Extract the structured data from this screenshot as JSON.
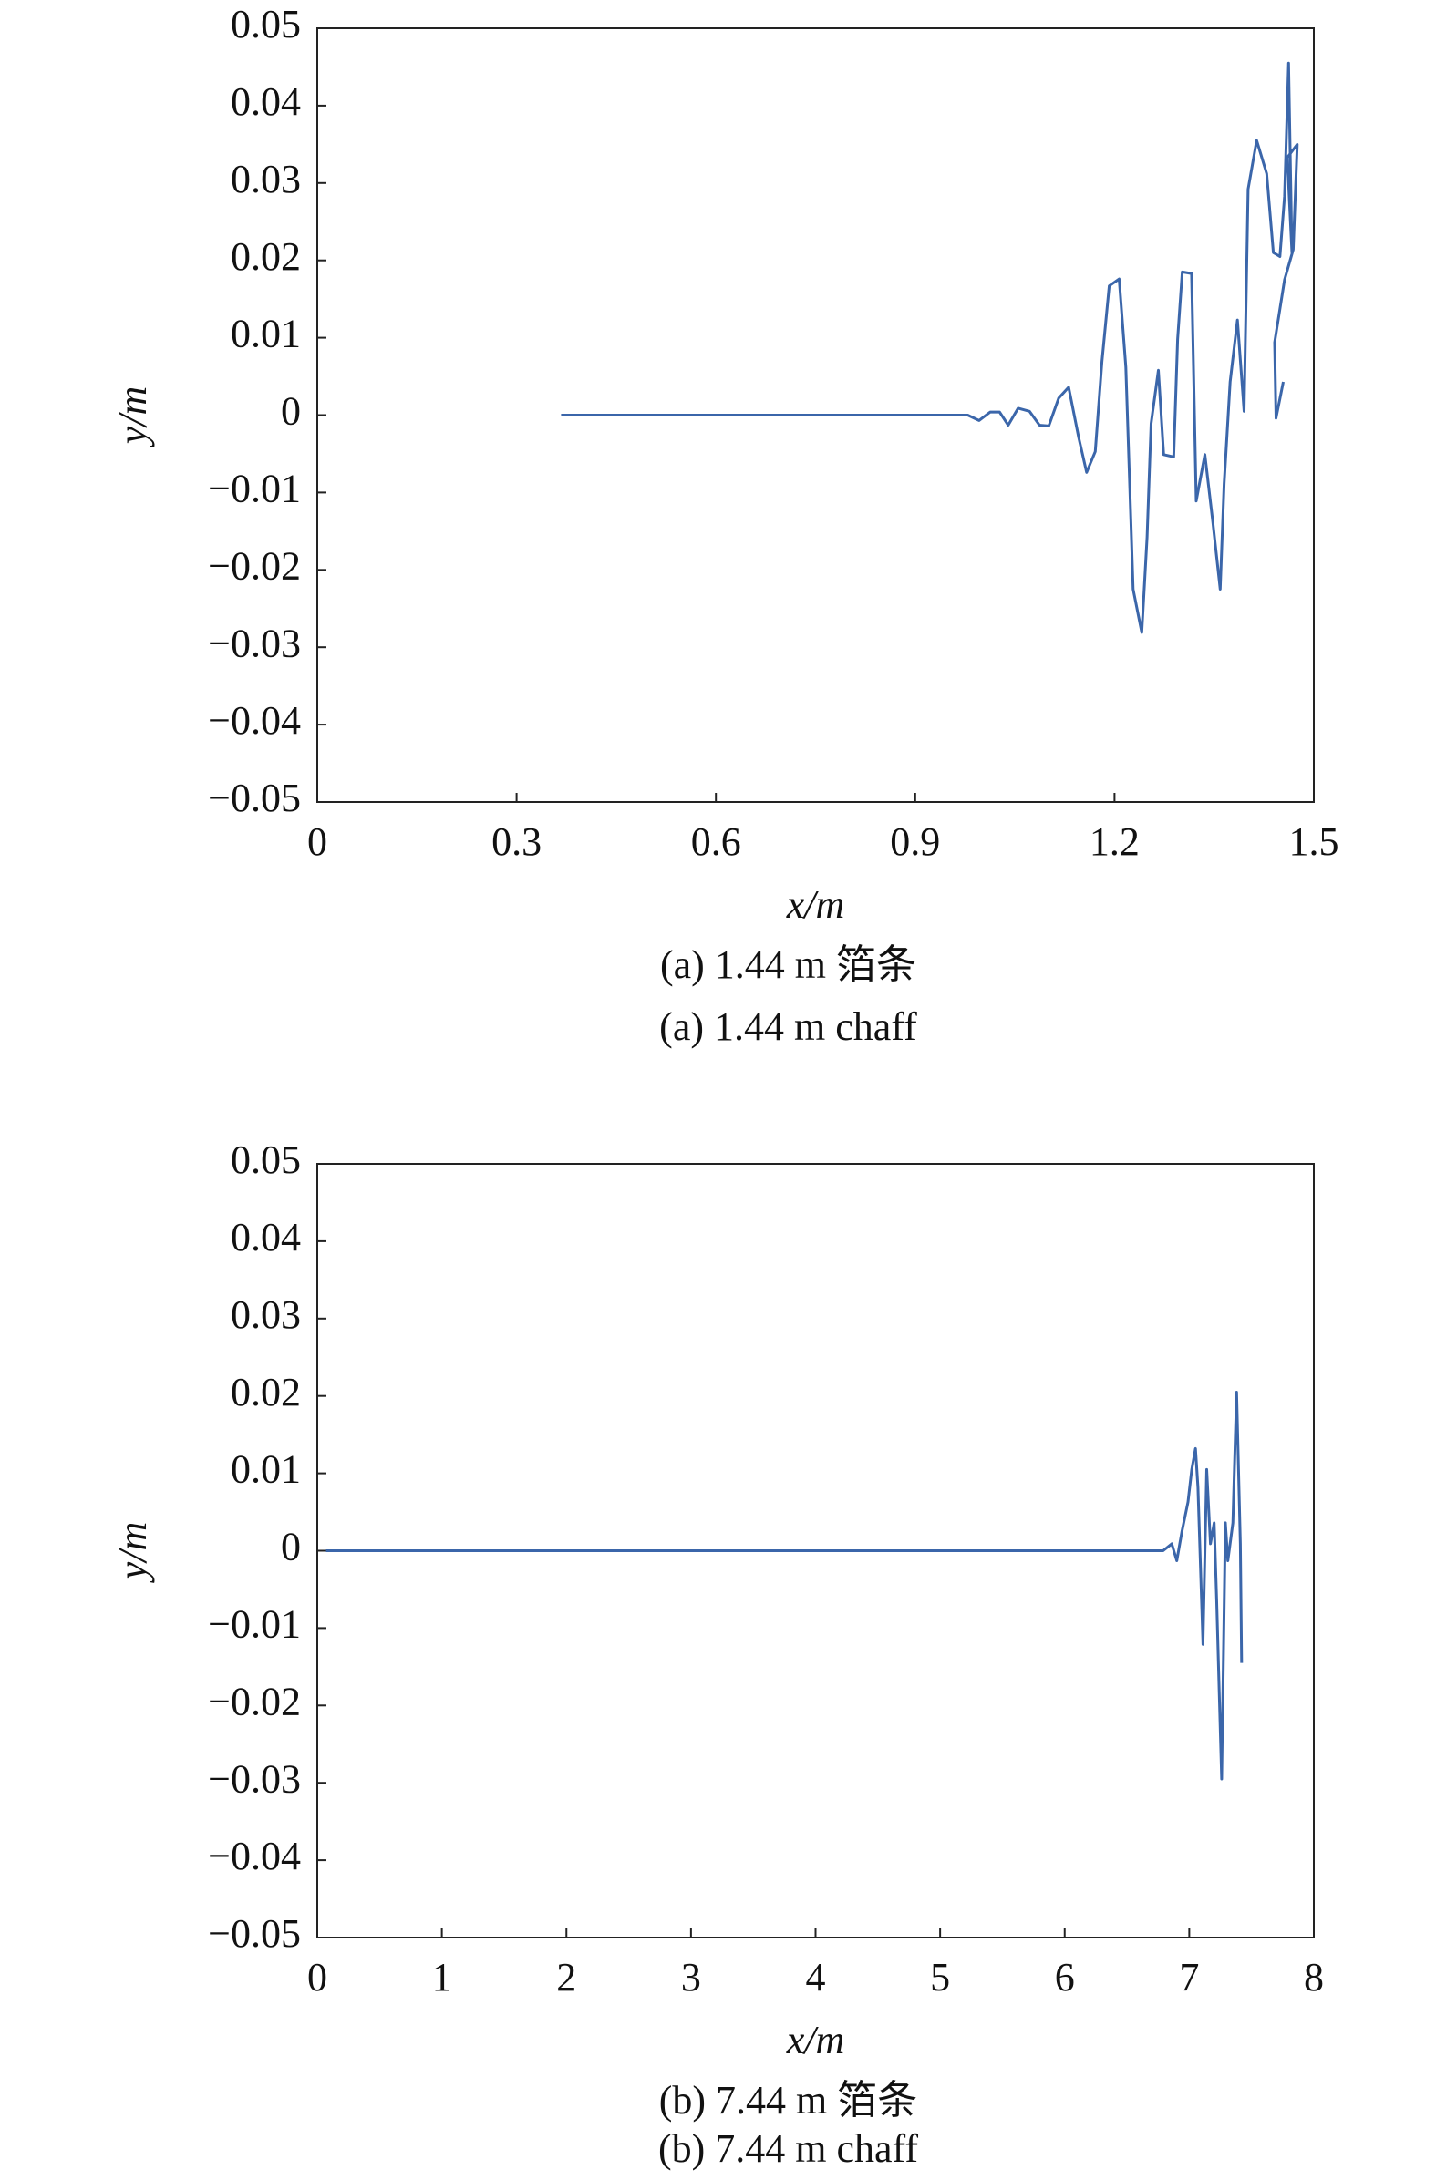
{
  "chart_data": [
    {
      "type": "line",
      "title": "(a) 1.44 m 箔条",
      "subtitle": "(a) 1.44 m chaff",
      "xlabel": "x/m",
      "ylabel": "y/m",
      "xlim": [
        0,
        1.5
      ],
      "xticks": [
        0,
        0.3,
        0.6,
        0.9,
        1.2,
        1.5
      ],
      "ylim": [
        -0.05,
        0.05
      ],
      "yticks": [
        0.05,
        0.04,
        0.03,
        0.02,
        0.01,
        0,
        {
          "value": -0.01,
          "label": "−0.01"
        },
        {
          "value": -0.02,
          "label": "−0.02"
        },
        {
          "value": -0.03,
          "label": "−0.03"
        },
        {
          "value": -0.04,
          "label": "−0.04"
        },
        {
          "value": -0.05,
          "label": "−0.05"
        }
      ],
      "x": [
        0.367,
        0.979,
        0.996,
        1.013,
        1.027,
        1.04,
        1.055,
        1.072,
        1.087,
        1.101,
        1.116,
        1.131,
        1.146,
        1.158,
        1.171,
        1.181,
        1.192,
        1.207,
        1.217,
        1.228,
        1.241,
        1.249,
        1.255,
        1.266,
        1.274,
        1.289,
        1.295,
        1.302,
        1.316,
        1.323,
        1.336,
        1.348,
        1.359,
        1.365,
        1.374,
        1.385,
        1.395,
        1.401,
        1.414,
        1.429,
        1.439,
        1.449,
        1.456,
        1.462,
        1.467,
        1.46,
        1.475,
        1.469,
        1.456,
        1.441,
        1.443,
        1.454
      ],
      "series": [
        {
          "color": "#3b66aa",
          "values": [
            0,
            0,
            -0.0007,
            0.0004,
            0.0004,
            -0.0013,
            0.0009,
            0.0005,
            -0.0013,
            -0.0014,
            0.0022,
            0.0036,
            -0.0029,
            -0.0074,
            -0.0047,
            0.0069,
            0.0167,
            0.0176,
            0.0062,
            -0.0225,
            -0.0281,
            -0.0158,
            -0.0011,
            0.0058,
            -0.0051,
            -0.0054,
            0.0098,
            0.0185,
            0.0183,
            -0.0111,
            -0.0051,
            -0.0138,
            -0.0225,
            -0.0089,
            0.0043,
            0.0123,
            0.0005,
            0.0292,
            0.0355,
            0.0312,
            0.021,
            0.0205,
            0.0283,
            0.0455,
            0.021,
            0.0333,
            0.035,
            0.0214,
            0.0175,
            0.0094,
            -0.0004,
            0.0043
          ]
        }
      ]
    },
    {
      "type": "line",
      "title": "(b) 7.44 m 箔条",
      "subtitle": "(b) 7.44 m chaff",
      "xlabel": "x/m",
      "ylabel": "y/m",
      "xlim": [
        0,
        8
      ],
      "xticks": [
        0,
        1,
        2,
        3,
        4,
        5,
        6,
        7,
        8
      ],
      "ylim": [
        -0.05,
        0.05
      ],
      "yticks": [
        0.05,
        0.04,
        0.03,
        0.02,
        0.01,
        0,
        {
          "value": -0.01,
          "label": "−0.01"
        },
        {
          "value": -0.02,
          "label": "−0.02"
        },
        {
          "value": -0.03,
          "label": "−0.03"
        },
        {
          "value": -0.04,
          "label": "−0.04"
        },
        {
          "value": -0.05,
          "label": "−0.05"
        }
      ],
      "x": [
        0.07,
        6.79,
        6.86,
        6.9,
        6.94,
        6.99,
        7.02,
        7.05,
        7.07,
        7.11,
        7.14,
        7.17,
        7.2,
        7.22,
        7.26,
        7.29,
        7.31,
        7.35,
        7.38,
        7.41,
        7.42
      ],
      "series": [
        {
          "color": "#3b66aa",
          "values": [
            0,
            0,
            0.0009,
            -0.0013,
            0.0024,
            0.0063,
            0.0105,
            0.0132,
            0.0082,
            -0.0121,
            0.0105,
            0.0009,
            0.0036,
            -0.0063,
            -0.0295,
            0.0036,
            -0.0013,
            0.0036,
            0.0205,
            0.0009,
            -0.0145
          ]
        }
      ]
    }
  ]
}
